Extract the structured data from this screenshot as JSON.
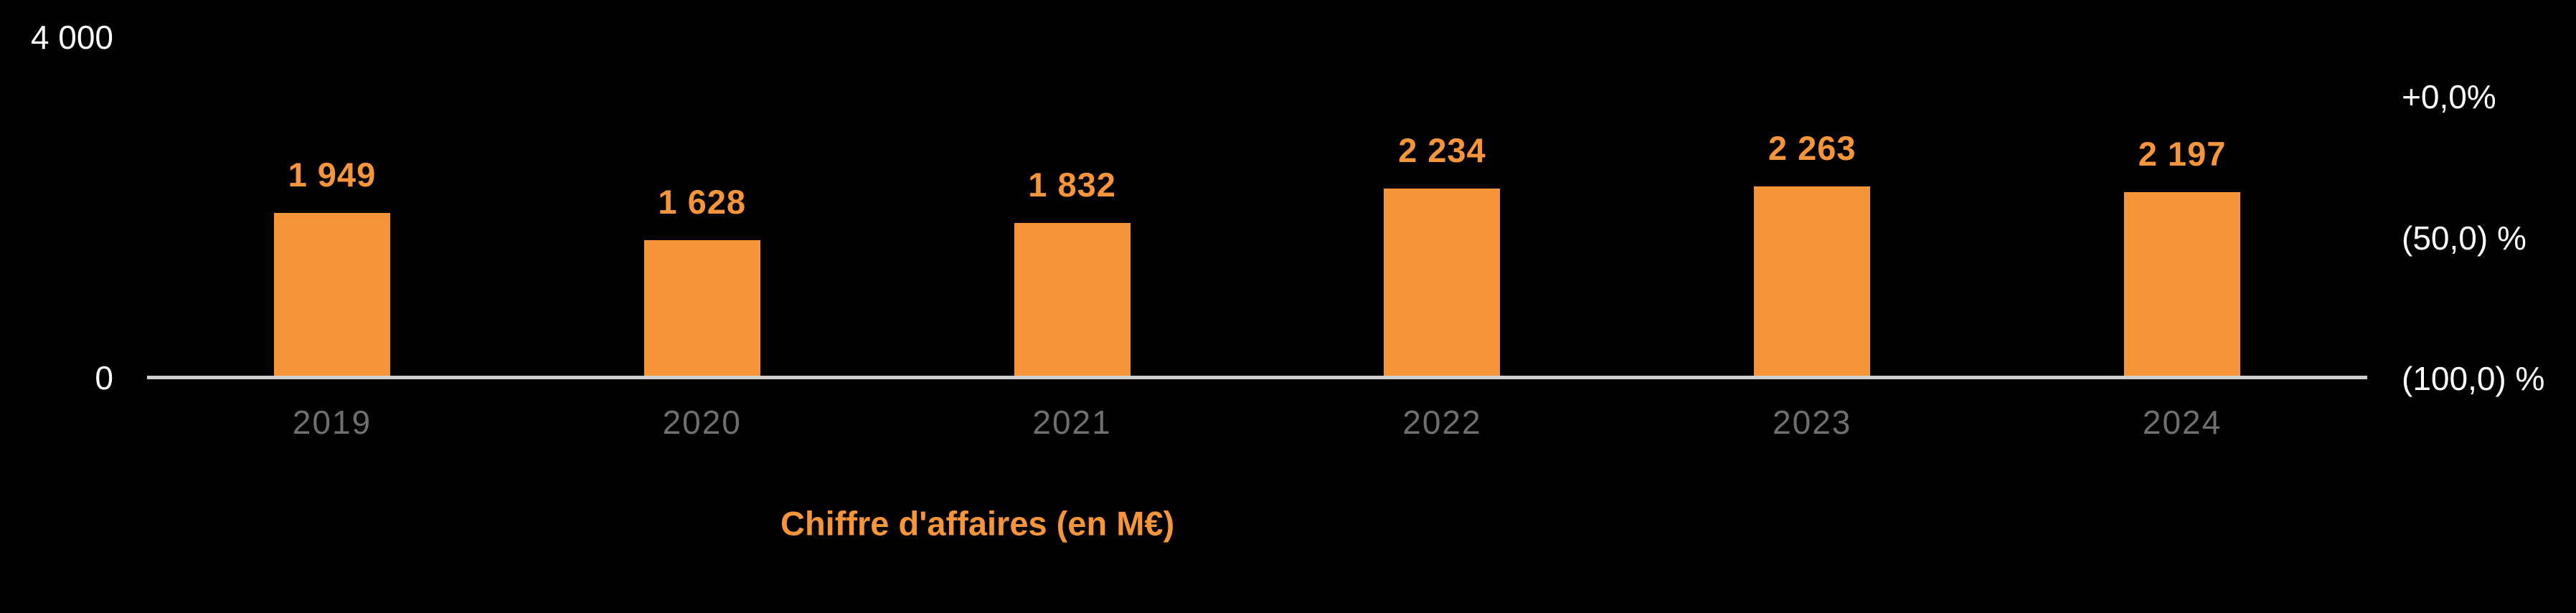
{
  "colors": {
    "background": "#000000",
    "accent": "#F7953B",
    "axis_text": "#FFFFFF",
    "category_text": "#6F6F6F",
    "axis_line": "#CFCFCF"
  },
  "chart_data": {
    "type": "bar",
    "title": "",
    "xlabel": "",
    "ylabel": "",
    "categories": [
      "2019",
      "2020",
      "2021",
      "2022",
      "2023",
      "2024"
    ],
    "series": [
      {
        "name": "Chiffre d'affaires (en M€)",
        "values": [
          1949,
          1628,
          1832,
          2234,
          2263,
          2197
        ],
        "labels": [
          "1 949",
          "1 628",
          "1 832",
          "2 234",
          "2 263",
          "2 197"
        ],
        "color": "#F7953B"
      }
    ],
    "ylim": [
      0,
      4000
    ],
    "left_axis_ticks": [
      {
        "label": "4 000",
        "value": 4000
      },
      {
        "label": "0",
        "value": 0
      }
    ],
    "right_axis_ticks": [
      {
        "label": "+0,0%"
      },
      {
        "label": "(50,0) %"
      },
      {
        "label": "(100,0) %"
      }
    ],
    "grid": false,
    "legend": {
      "label": "Chiffre d'affaires (en M€)",
      "position": "bottom"
    }
  }
}
